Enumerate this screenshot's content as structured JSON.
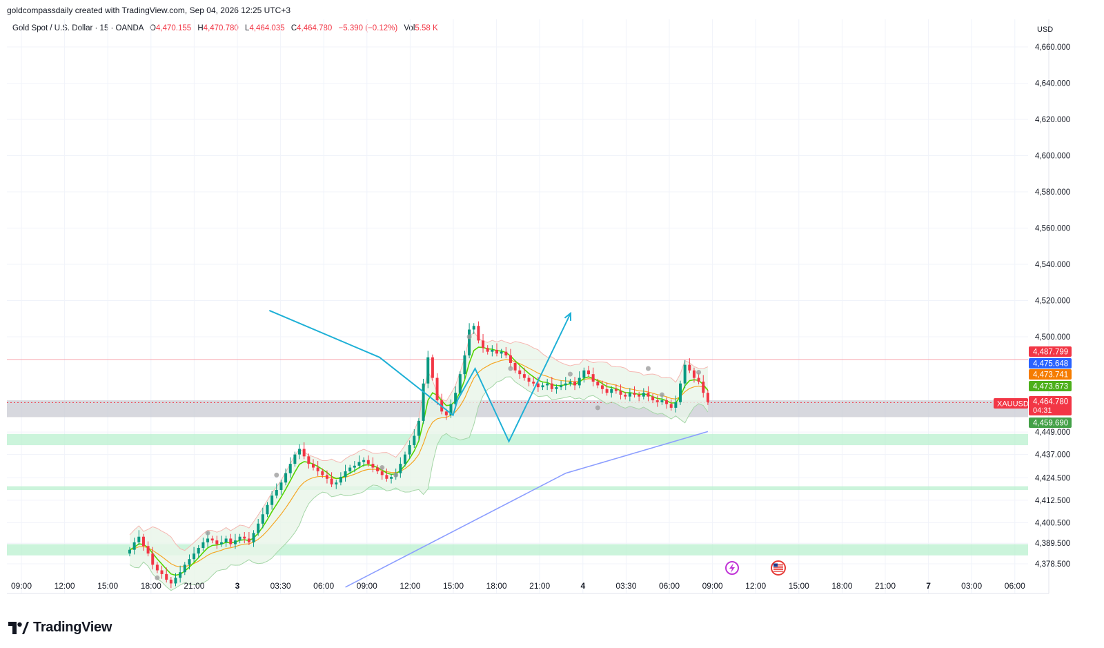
{
  "header": {
    "credit": "goldcompassdaily created with TradingView.com, Sep 04, 2026 12:25 UTC+3",
    "symbol": "Gold Spot / U.S. Dollar · 15 · OANDA",
    "open_label": "O",
    "open": "4,470.155",
    "high_label": "H",
    "high": "4,470.780",
    "low_label": "L",
    "low": "4,464.035",
    "close_label": "C",
    "close": "4,464.780",
    "change": "−5.390 (−0.12%)",
    "vol_label": "Vol",
    "vol": "5.58 K"
  },
  "footer": {
    "brand": "TradingView"
  },
  "chart_data": {
    "type": "candlestick",
    "currency": "USD",
    "y_ticks": [
      {
        "label": "4,660.000",
        "value": 4660
      },
      {
        "label": "4,640.000",
        "value": 4640
      },
      {
        "label": "4,620.000",
        "value": 4620
      },
      {
        "label": "4,600.000",
        "value": 4600
      },
      {
        "label": "4,580.000",
        "value": 4580
      },
      {
        "label": "4,560.000",
        "value": 4560
      },
      {
        "label": "4,540.000",
        "value": 4540
      },
      {
        "label": "4,520.000",
        "value": 4520
      },
      {
        "label": "4,500.000",
        "value": 4500
      },
      {
        "label": "4,449.000",
        "value": 4449
      },
      {
        "label": "4,437.000",
        "value": 4437
      },
      {
        "label": "4,424.500",
        "value": 4424.5
      },
      {
        "label": "4,412.500",
        "value": 4412.5
      },
      {
        "label": "4,400.500",
        "value": 4400.5
      },
      {
        "label": "4,389.500",
        "value": 4389.5
      },
      {
        "label": "4,378.500",
        "value": 4378.5
      }
    ],
    "x_ticks": [
      "09:00",
      "12:00",
      "15:00",
      "18:00",
      "21:00",
      "3",
      "03:30",
      "06:00",
      "09:00",
      "12:00",
      "15:00",
      "18:00",
      "21:00",
      "4",
      "03:30",
      "06:00",
      "09:00",
      "12:00",
      "15:00",
      "18:00",
      "21:00",
      "7",
      "03:00",
      "06:00"
    ],
    "price_labels": [
      {
        "label": "4,487.799",
        "color": "#f23645"
      },
      {
        "label": "4,475.648",
        "color": "#2962ff"
      },
      {
        "label": "4,473.741",
        "color": "#f57c00"
      },
      {
        "label": "4,473.673",
        "color": "#4caf1a"
      },
      {
        "label": "4,464.780",
        "color": "#f23645",
        "countdown": "04:31"
      },
      {
        "label": "4,459.690",
        "color": "#43a047"
      }
    ],
    "symbol_tag": "XAUUSD",
    "zones": [
      {
        "from": 4457,
        "to": 4466,
        "color": "#c9cbd3"
      },
      {
        "from": 4442,
        "to": 4448,
        "color": "#b9f0cf"
      },
      {
        "from": 4418,
        "to": 4420,
        "color": "#b9f0cf"
      },
      {
        "from": 4383,
        "to": 4389,
        "color": "#b9f0cf"
      }
    ],
    "resistance_line": 4487.8,
    "projection_path": [
      [
        4467,
        4514.5
      ],
      [
        4542,
        4489
      ],
      [
        4592,
        4458
      ],
      [
        4595,
        4466
      ],
      [
        4607,
        4483
      ],
      [
        4630,
        4444
      ],
      [
        4672,
        4513
      ]
    ],
    "closes": [
      4386,
      4390,
      4393,
      4388,
      4384,
      4378,
      4375,
      4373,
      4370,
      4368,
      4371,
      4374,
      4378,
      4381,
      4384,
      4387,
      4390,
      4392,
      4391,
      4389,
      4390,
      4392,
      4389,
      4391,
      4393,
      4392,
      4390,
      4395,
      4400,
      4405,
      4410,
      4415,
      4418,
      4422,
      4427,
      4432,
      4437,
      4440,
      4436,
      4432,
      4430,
      4428,
      4426,
      4424,
      4421,
      4422,
      4425,
      4428,
      4430,
      4431,
      4433,
      4434,
      4432,
      4430,
      4428,
      4426,
      4424,
      4425,
      4427,
      4432,
      4437,
      4442,
      4447,
      4455,
      4475,
      4489,
      4478,
      4466,
      4460,
      4458,
      4464,
      4470,
      4480,
      4490,
      4504,
      4506,
      4498,
      4494,
      4492,
      4493,
      4491,
      4492,
      4490,
      4486,
      4482,
      4480,
      4478,
      4476,
      4475,
      4473,
      4474,
      4475,
      4472,
      4473,
      4474,
      4475,
      4476,
      4474,
      4478,
      4482,
      4480,
      4476,
      4474,
      4472,
      4470,
      4472,
      4471,
      4469,
      4468,
      4470,
      4469,
      4468,
      4470,
      4468,
      4466,
      4465,
      4466,
      4464,
      4462,
      4465,
      4475,
      4485,
      4482,
      4478,
      4476,
      4470,
      4465
    ]
  }
}
